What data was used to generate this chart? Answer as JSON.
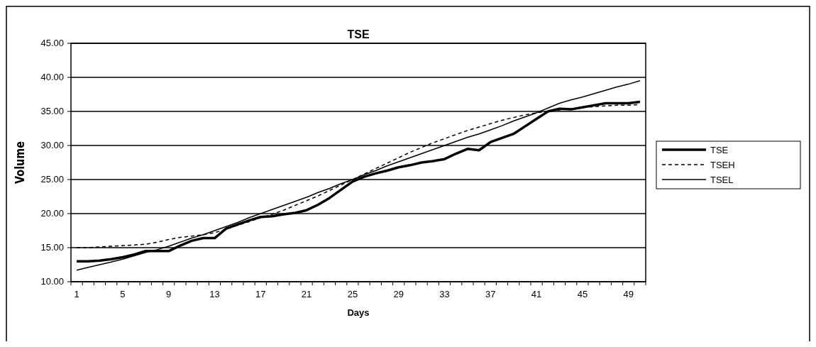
{
  "chart_data": {
    "type": "line",
    "title": "TSE",
    "xlabel": "Days",
    "ylabel": "Volume",
    "categories": [
      "1",
      null,
      null,
      null,
      "5",
      null,
      null,
      null,
      "9",
      null,
      null,
      null,
      "13",
      null,
      null,
      null,
      "17",
      null,
      null,
      null,
      "21",
      null,
      null,
      null,
      "25",
      null,
      null,
      null,
      "29",
      null,
      null,
      null,
      "33",
      null,
      null,
      null,
      "37",
      null,
      null,
      null,
      "41",
      null,
      null,
      null,
      "45",
      null,
      null,
      null,
      "49",
      null
    ],
    "ylim": [
      10,
      45
    ],
    "yticks": [
      {
        "value": 10,
        "label": "10.00"
      },
      {
        "value": 15,
        "label": "15.00"
      },
      {
        "value": 20,
        "label": "20.00"
      },
      {
        "value": 25,
        "label": "25.00"
      },
      {
        "value": 30,
        "label": "30.00"
      },
      {
        "value": 35,
        "label": "35.00"
      },
      {
        "value": 40,
        "label": "40.00"
      },
      {
        "value": 45,
        "label": "45.00"
      }
    ],
    "grid": "y",
    "legend": "right",
    "marker": "none",
    "series": [
      {
        "name": "TSE",
        "color": "#000000",
        "line_style": "solid",
        "values": [
          13.0,
          13.0,
          13.1,
          13.3,
          13.6,
          14.0,
          14.5,
          14.5,
          14.5,
          15.3,
          16.0,
          16.4,
          16.4,
          17.8,
          18.4,
          19.0,
          19.5,
          19.6,
          19.9,
          20.1,
          20.5,
          21.3,
          22.3,
          23.5,
          24.7,
          25.4,
          25.9,
          26.3,
          26.8,
          27.1,
          27.5,
          27.7,
          28.0,
          28.8,
          29.5,
          29.3,
          30.5,
          31.1,
          31.7,
          32.8,
          33.9,
          35.0,
          35.4,
          35.3,
          35.6,
          35.9,
          36.2,
          36.2,
          36.2,
          36.4
        ]
      },
      {
        "name": "TSEH",
        "color": "#000000",
        "line_style": "dashed",
        "values": [
          15.0,
          15.0,
          15.1,
          15.2,
          15.3,
          15.4,
          15.5,
          15.8,
          16.2,
          16.5,
          16.7,
          16.9,
          17.2,
          17.7,
          18.3,
          18.8,
          19.4,
          19.9,
          20.5,
          21.2,
          21.9,
          22.6,
          23.4,
          24.2,
          25.0,
          25.8,
          26.6,
          27.4,
          28.2,
          29.0,
          29.7,
          30.4,
          31.0,
          31.6,
          32.2,
          32.7,
          33.2,
          33.7,
          34.1,
          34.5,
          34.8,
          35.0,
          35.2,
          35.4,
          35.6,
          35.7,
          35.8,
          35.9,
          35.9,
          36.0
        ]
      },
      {
        "name": "TSEL",
        "color": "#000000",
        "line_style": "solid",
        "values": [
          11.7,
          12.1,
          12.5,
          12.9,
          13.3,
          13.8,
          14.3,
          14.7,
          15.2,
          15.8,
          16.4,
          16.9,
          17.5,
          18.1,
          18.7,
          19.4,
          20.0,
          20.6,
          21.2,
          21.8,
          22.4,
          23.1,
          23.7,
          24.4,
          25.0,
          25.7,
          26.3,
          27.0,
          27.6,
          28.2,
          28.8,
          29.4,
          30.0,
          30.6,
          31.2,
          31.7,
          32.3,
          32.9,
          33.6,
          34.2,
          34.8,
          35.5,
          36.2,
          36.7,
          37.1,
          37.6,
          38.1,
          38.6,
          39.0,
          39.5
        ]
      }
    ]
  }
}
